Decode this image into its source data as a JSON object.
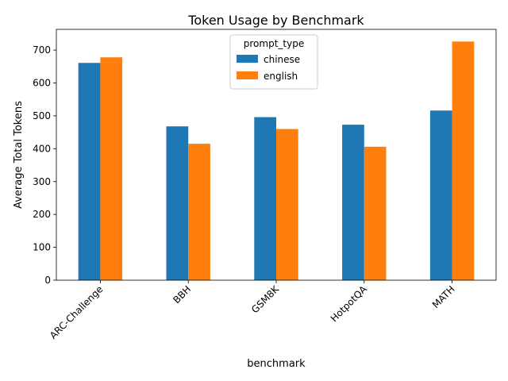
{
  "chart_data": {
    "type": "bar",
    "title": "Token Usage by Benchmark",
    "xlabel": "benchmark",
    "ylabel": "Average Total Tokens",
    "categories": [
      "ARC-Challenge",
      "BBH",
      "GSM8K",
      "HotpotQA",
      "MATH"
    ],
    "series": [
      {
        "name": "chinese",
        "values": [
          661,
          468,
          496,
          473,
          516
        ],
        "color": "#1f77b4"
      },
      {
        "name": "english",
        "values": [
          678,
          415,
          460,
          406,
          726
        ],
        "color": "#ff7f0e"
      }
    ],
    "ylim": [
      0,
      763
    ],
    "yticks": [
      0,
      100,
      200,
      300,
      400,
      500,
      600,
      700
    ],
    "legend": {
      "title": "prompt_type",
      "placement": "upper-center"
    },
    "grid": false
  }
}
